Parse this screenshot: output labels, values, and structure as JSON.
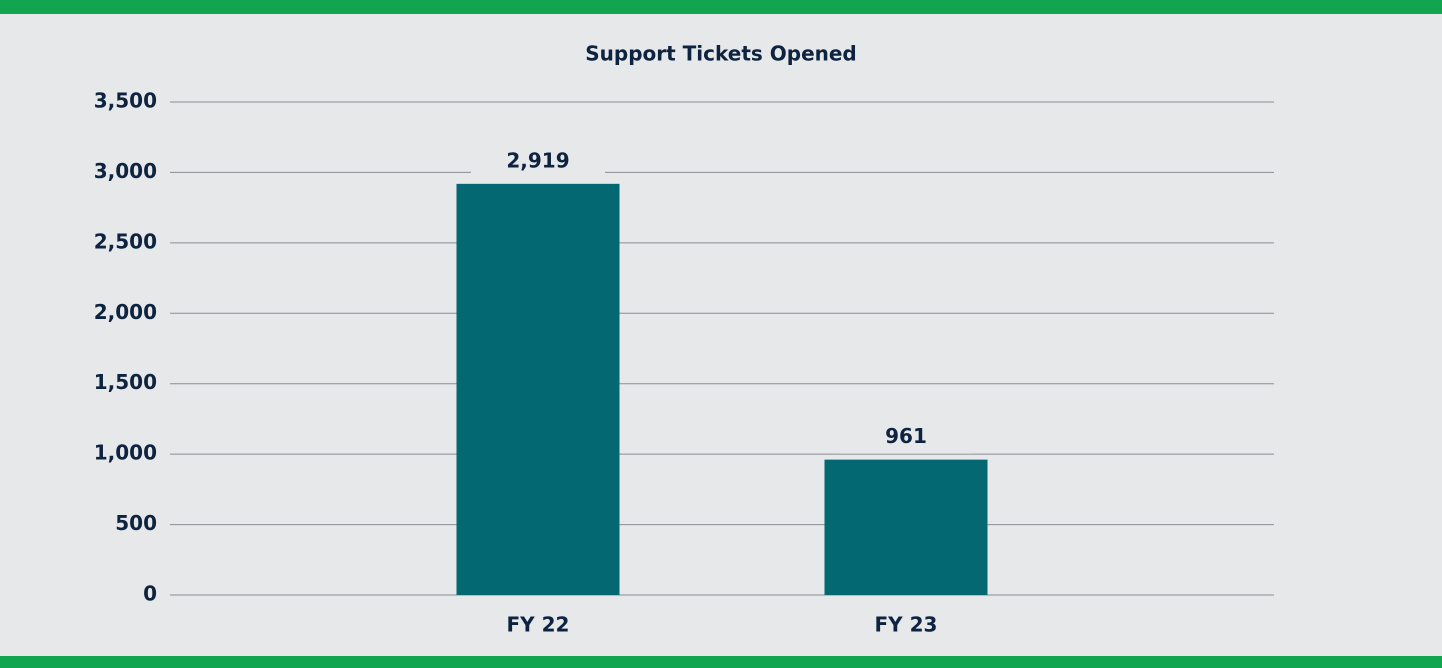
{
  "chart_data": {
    "type": "bar",
    "title": "Support Tickets Opened",
    "categories": [
      "FY 22",
      "FY 23"
    ],
    "values": [
      2919,
      961
    ],
    "value_labels": [
      "2,919",
      "961"
    ],
    "color": "#046872",
    "ylim": [
      0,
      3500
    ],
    "yticks": [
      0,
      500,
      {
        "value": 1000,
        "label": "1,000"
      },
      {
        "value": 1500,
        "label": "1,500"
      },
      {
        "value": 2000,
        "label": "2,000"
      },
      {
        "value": 2500,
        "label": "2,500"
      },
      {
        "value": 3000,
        "label": "3,000"
      },
      {
        "value": 3500,
        "label": "3,500"
      }
    ],
    "grid": true
  }
}
